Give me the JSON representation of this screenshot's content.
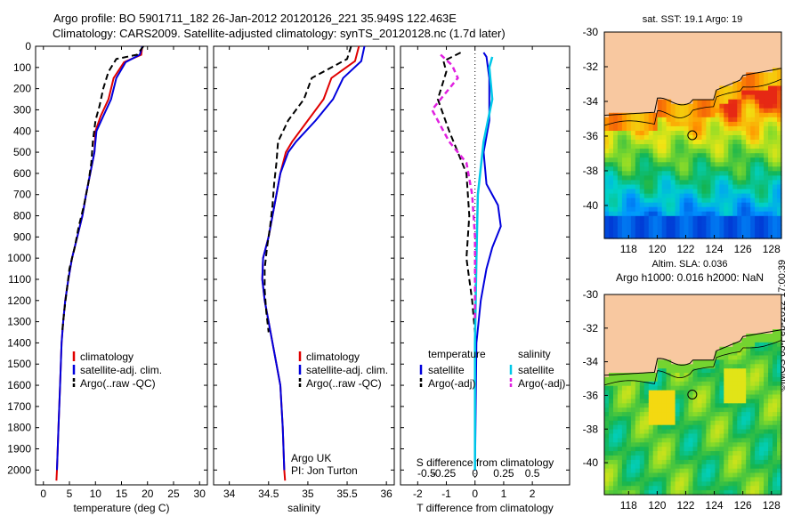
{
  "header": {
    "line1": "Argo profile: BO 5901711_182 26-Jan-2012 20120126_221 35.949S 122.463E",
    "line2": "Climatology: CARS2009. Satellite-adjusted climatology: synTS_20120128.nc (1.7d later)"
  },
  "credit": "©IMOS 03-Feb-2012 17:00:39",
  "colors": {
    "clim": "#e00000",
    "sat": "#0000dd",
    "argo": "#000000",
    "sal_sat": "#00c8e8",
    "sal_argo": "#e020e0",
    "land": "#f8c8a0"
  },
  "depth_axis": {
    "ticks": [
      0,
      100,
      200,
      300,
      400,
      500,
      600,
      700,
      800,
      900,
      1000,
      1100,
      1200,
      1300,
      1400,
      1500,
      1600,
      1700,
      1800,
      1900,
      2000
    ],
    "ylim": [
      0,
      2070
    ]
  },
  "chart_data": [
    {
      "type": "line",
      "id": "temperature",
      "xlabel": "temperature (deg C)",
      "xlim": [
        -1.5,
        31.5
      ],
      "xticks": [
        0,
        5,
        10,
        15,
        20,
        25,
        30
      ],
      "ylim": [
        0,
        2070
      ],
      "invert_y": true,
      "legend": [
        "climatology",
        "satellite-adj. clim.",
        "Argo(..raw -QC)"
      ],
      "series": [
        {
          "name": "climatology",
          "style": "clim",
          "points": [
            [
              19.0,
              0
            ],
            [
              18.8,
              40
            ],
            [
              15.5,
              75
            ],
            [
              13.5,
              150
            ],
            [
              12.5,
              250
            ],
            [
              11.0,
              330
            ],
            [
              10.0,
              400
            ],
            [
              9.8,
              500
            ],
            [
              9.0,
              600
            ],
            [
              8.2,
              700
            ],
            [
              7.5,
              800
            ],
            [
              6.5,
              900
            ],
            [
              5.5,
              1000
            ],
            [
              4.8,
              1100
            ],
            [
              4.2,
              1200
            ],
            [
              3.8,
              1300
            ],
            [
              3.5,
              1400
            ],
            [
              3.2,
              1600
            ],
            [
              2.9,
              1800
            ],
            [
              2.6,
              2000
            ],
            [
              2.5,
              2050
            ]
          ]
        },
        {
          "name": "satellite-adj. clim.",
          "style": "sat",
          "points": [
            [
              19.0,
              0
            ],
            [
              18.5,
              40
            ],
            [
              15.8,
              75
            ],
            [
              14.0,
              150
            ],
            [
              13.0,
              250
            ],
            [
              11.5,
              330
            ],
            [
              10.2,
              400
            ],
            [
              9.8,
              500
            ],
            [
              9.0,
              600
            ],
            [
              8.2,
              700
            ],
            [
              7.5,
              800
            ],
            [
              6.5,
              900
            ],
            [
              5.5,
              1000
            ],
            [
              4.8,
              1100
            ],
            [
              4.2,
              1200
            ],
            [
              3.8,
              1300
            ],
            [
              3.5,
              1400
            ],
            [
              3.2,
              1600
            ],
            [
              2.9,
              1800
            ],
            [
              2.6,
              2000
            ]
          ]
        },
        {
          "name": "Argo(..raw -QC)",
          "style": "argo",
          "points": [
            [
              19.2,
              0
            ],
            [
              18.0,
              40
            ],
            [
              14.0,
              60
            ],
            [
              12.5,
              120
            ],
            [
              11.5,
              200
            ],
            [
              10.8,
              280
            ],
            [
              10.0,
              350
            ],
            [
              9.5,
              450
            ],
            [
              9.2,
              550
            ],
            [
              8.6,
              650
            ],
            [
              7.8,
              750
            ],
            [
              6.8,
              850
            ],
            [
              6.0,
              950
            ],
            [
              5.0,
              1050
            ],
            [
              4.5,
              1150
            ],
            [
              4.0,
              1250
            ],
            [
              3.6,
              1350
            ]
          ]
        }
      ]
    },
    {
      "type": "line",
      "id": "salinity",
      "xlabel": "salinity",
      "xlim": [
        33.8,
        36.1
      ],
      "xticks": [
        34,
        34.5,
        35,
        35.5,
        36
      ],
      "ylim": [
        0,
        2070
      ],
      "invert_y": true,
      "legend": [
        "climatology",
        "satellite-adj. clim.",
        "Argo(..raw -QC)"
      ],
      "annotation": [
        "Argo UK",
        "PI: Jon Turton"
      ],
      "series": [
        {
          "name": "climatology",
          "style": "clim",
          "points": [
            [
              35.65,
              0
            ],
            [
              35.6,
              70
            ],
            [
              35.3,
              150
            ],
            [
              35.2,
              250
            ],
            [
              35.0,
              350
            ],
            [
              34.8,
              450
            ],
            [
              34.72,
              500
            ],
            [
              34.65,
              600
            ],
            [
              34.6,
              700
            ],
            [
              34.55,
              800
            ],
            [
              34.5,
              900
            ],
            [
              34.43,
              1000
            ],
            [
              34.42,
              1100
            ],
            [
              34.45,
              1200
            ],
            [
              34.5,
              1300
            ],
            [
              34.55,
              1400
            ],
            [
              34.6,
              1500
            ],
            [
              34.65,
              1600
            ],
            [
              34.68,
              1800
            ],
            [
              34.7,
              2000
            ],
            [
              34.71,
              2050
            ]
          ]
        },
        {
          "name": "satellite-adj. clim.",
          "style": "sat",
          "points": [
            [
              35.72,
              0
            ],
            [
              35.68,
              70
            ],
            [
              35.45,
              150
            ],
            [
              35.32,
              250
            ],
            [
              35.1,
              350
            ],
            [
              34.85,
              450
            ],
            [
              34.75,
              500
            ],
            [
              34.65,
              600
            ],
            [
              34.6,
              700
            ],
            [
              34.55,
              800
            ],
            [
              34.5,
              900
            ],
            [
              34.43,
              1000
            ],
            [
              34.42,
              1100
            ],
            [
              34.45,
              1200
            ],
            [
              34.5,
              1300
            ],
            [
              34.55,
              1400
            ],
            [
              34.6,
              1500
            ],
            [
              34.65,
              1600
            ],
            [
              34.68,
              1800
            ],
            [
              34.7,
              2000
            ]
          ]
        },
        {
          "name": "Argo(..raw -QC)",
          "style": "argo",
          "points": [
            [
              35.55,
              0
            ],
            [
              35.5,
              60
            ],
            [
              35.05,
              150
            ],
            [
              34.95,
              250
            ],
            [
              34.75,
              350
            ],
            [
              34.62,
              450
            ],
            [
              34.6,
              550
            ],
            [
              34.57,
              650
            ],
            [
              34.55,
              750
            ],
            [
              34.52,
              850
            ],
            [
              34.48,
              950
            ],
            [
              34.45,
              1050
            ],
            [
              34.45,
              1150
            ],
            [
              34.47,
              1250
            ],
            [
              34.5,
              1350
            ]
          ]
        }
      ]
    },
    {
      "type": "line",
      "id": "difference",
      "xlabel": "T difference from climatology",
      "xlabel2": "S difference from climatology",
      "xlim": [
        -2.6,
        3.3
      ],
      "xticks": [
        -2,
        -1,
        0,
        1,
        2
      ],
      "xticks2": [
        "-0.5",
        "-0.25",
        "0",
        "0.25",
        "0.5"
      ],
      "ylim": [
        0,
        2070
      ],
      "invert_y": true,
      "legend_left": {
        "title": "temperature",
        "items": [
          "satellite",
          "Argo(-adj)"
        ]
      },
      "legend_right": {
        "title": "salinity",
        "items": [
          "satellite",
          "Argo(-adj)"
        ]
      },
      "series": [
        {
          "name": "T satellite",
          "style": "sat",
          "points": [
            [
              0.3,
              30
            ],
            [
              0.4,
              50
            ],
            [
              0.5,
              150
            ],
            [
              0.5,
              350
            ],
            [
              0.3,
              500
            ],
            [
              0.4,
              650
            ],
            [
              0.8,
              750
            ],
            [
              0.9,
              850
            ],
            [
              0.6,
              950
            ],
            [
              0.4,
              1050
            ],
            [
              0.2,
              1200
            ],
            [
              0.05,
              1400
            ],
            [
              0,
              2000
            ]
          ]
        },
        {
          "name": "T Argo(-adj)",
          "style": "argo",
          "points": [
            [
              -0.5,
              30
            ],
            [
              -1.1,
              70
            ],
            [
              -1.0,
              120
            ],
            [
              -1.3,
              250
            ],
            [
              -0.9,
              400
            ],
            [
              -0.3,
              600
            ],
            [
              -0.2,
              800
            ],
            [
              -0.3,
              1000
            ],
            [
              -0.1,
              1200
            ],
            [
              0,
              1350
            ]
          ]
        },
        {
          "name": "S satellite",
          "style": "sal_sat",
          "points": [
            [
              0.6,
              50
            ],
            [
              0.5,
              100
            ],
            [
              0.6,
              250
            ],
            [
              0.3,
              450
            ],
            [
              0.1,
              700
            ],
            [
              0.05,
              1000
            ],
            [
              0,
              1400
            ],
            [
              0,
              2000
            ]
          ]
        },
        {
          "name": "S Argo(-adj)",
          "style": "sal_argo",
          "points": [
            [
              -1.2,
              40
            ],
            [
              -0.8,
              90
            ],
            [
              -0.6,
              150
            ],
            [
              -1.5,
              300
            ],
            [
              -0.9,
              450
            ],
            [
              -0.3,
              550
            ],
            [
              -0.1,
              700
            ],
            [
              0,
              900
            ],
            [
              0,
              1300
            ]
          ]
        }
      ]
    },
    {
      "type": "heatmap",
      "id": "sst-map",
      "title": "sat. SST: 19.1 Argo: 19",
      "xlim": [
        116.3,
        128.7
      ],
      "ylim": [
        -41.9,
        -30
      ],
      "xticks": [
        118,
        120,
        122,
        124,
        126,
        128
      ],
      "yticks": [
        -30,
        -32,
        -34,
        -36,
        -38,
        -40
      ],
      "marker": [
        122.46,
        -35.95
      ]
    },
    {
      "type": "heatmap",
      "id": "sla-map",
      "title": "Altim. SLA: 0.036",
      "title2": "Argo h1000: 0.016 h2000: NaN",
      "xlim": [
        116.3,
        128.7
      ],
      "ylim": [
        -41.9,
        -30
      ],
      "xticks": [
        118,
        120,
        122,
        124,
        126,
        128
      ],
      "yticks": [
        -30,
        -32,
        -34,
        -36,
        -38,
        -40
      ],
      "marker": [
        122.46,
        -35.95
      ]
    }
  ]
}
